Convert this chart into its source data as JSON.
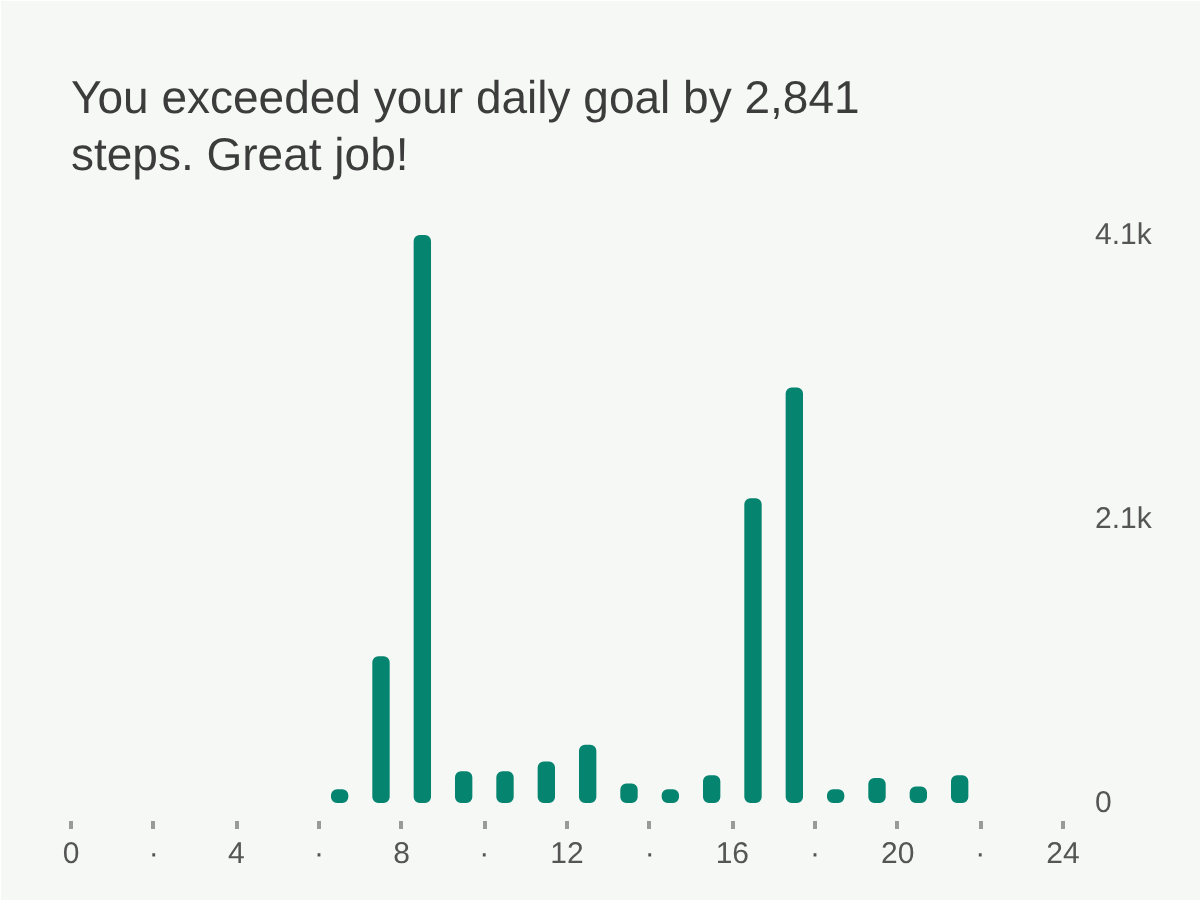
{
  "chart_data": {
    "type": "bar",
    "title": "You exceeded your daily goal by 2,841 steps. Great job!",
    "x": [
      6.5,
      7.5,
      8.5,
      9.5,
      10.5,
      11.5,
      12.5,
      13.5,
      14.5,
      15.5,
      16.5,
      17.5,
      18.5,
      19.5,
      20.5,
      21.5
    ],
    "values": [
      100,
      1060,
      4100,
      230,
      230,
      300,
      420,
      140,
      100,
      200,
      2200,
      3000,
      100,
      180,
      120,
      200
    ],
    "color": "#05846f",
    "xlim": [
      0,
      24
    ],
    "xticks": [
      0,
      {
        "value": 2,
        "label": "·"
      },
      4,
      {
        "value": 6,
        "label": "·"
      },
      8,
      {
        "value": 10,
        "label": "·"
      },
      12,
      {
        "value": 14,
        "label": "·"
      },
      16,
      {
        "value": 18,
        "label": "·"
      },
      20,
      {
        "value": 22,
        "label": "·"
      },
      24
    ],
    "ylim": [
      0,
      4100
    ],
    "yticks": [
      0,
      {
        "value": 2050,
        "label": "2.1k"
      },
      {
        "value": 4100,
        "label": "4.1k"
      }
    ]
  }
}
